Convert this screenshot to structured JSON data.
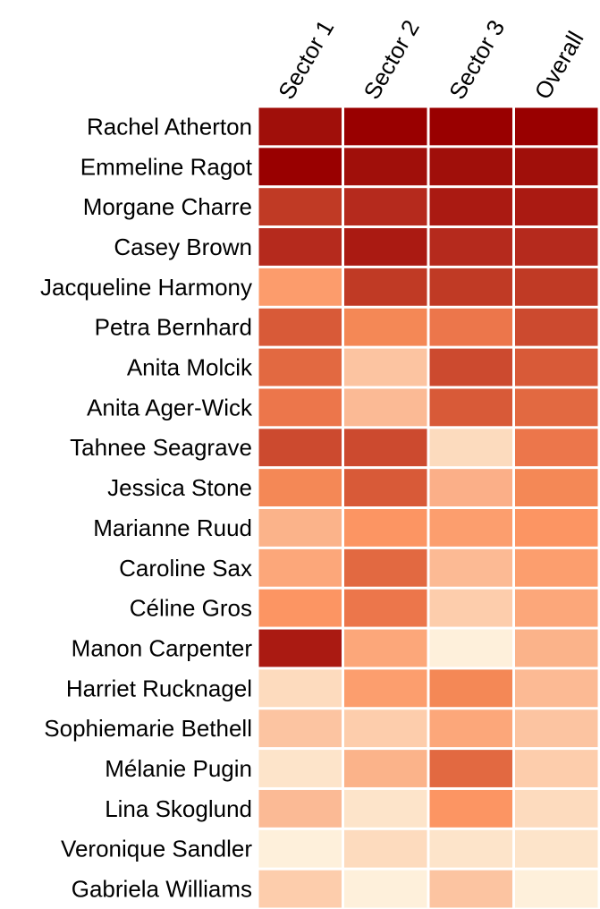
{
  "chart_data": {
    "type": "heatmap",
    "title": "",
    "columns": [
      "Sector 1",
      "Sector 2",
      "Sector 3",
      "Overall"
    ],
    "rows": [
      "Rachel Atherton",
      "Emmeline Ragot",
      "Morgane Charre",
      "Casey Brown",
      "Jacqueline Harmony",
      "Petra Bernhard",
      "Anita Molcik",
      "Anita Ager-Wick",
      "Tahnee Seagrave",
      "Jessica Stone",
      "Marianne Ruud",
      "Caroline Sax",
      "Céline Gros",
      "Manon Carpenter",
      "Harriet Rucknagel",
      "Sophiemarie Bethell",
      "Mélanie Pugin",
      "Lina Skoglund",
      "Veronique Sandler",
      "Gabriela Williams"
    ],
    "colorscale": "orange-red sequential (dark red = best, pale cream = worst)",
    "cell_colors": [
      [
        "#a00f0a",
        "#990000",
        "#990000",
        "#990000"
      ],
      [
        "#990000",
        "#a00f0a",
        "#a00f0a",
        "#a00f0a"
      ],
      [
        "#c03a25",
        "#b52a1d",
        "#aa1a12",
        "#aa1a12"
      ],
      [
        "#b52a1d",
        "#aa1a12",
        "#b52a1d",
        "#b52a1d"
      ],
      [
        "#fc9c6c",
        "#c03a25",
        "#c03a25",
        "#c03a25"
      ],
      [
        "#d85a38",
        "#f48856",
        "#ec764b",
        "#cc4a2f"
      ],
      [
        "#e26941",
        "#fcc4a1",
        "#cc4a2f",
        "#d85a38"
      ],
      [
        "#ec764b",
        "#fbba95",
        "#d85a38",
        "#e26941"
      ],
      [
        "#cc4a2f",
        "#cc4a2f",
        "#fcdbbe",
        "#ec764b"
      ],
      [
        "#f48856",
        "#d85a38",
        "#fbaf88",
        "#f48856"
      ],
      [
        "#fbb38a",
        "#fc9563",
        "#fc9e6e",
        "#fc9563"
      ],
      [
        "#fca77a",
        "#e26941",
        "#fcba94",
        "#fc9e6e"
      ],
      [
        "#fc9563",
        "#ec764b",
        "#fdcdac",
        "#fca77a"
      ],
      [
        "#aa1a12",
        "#fca77a",
        "#fef0db",
        "#fbb38a"
      ],
      [
        "#fddbbe",
        "#fc9e6e",
        "#f48856",
        "#fcba94"
      ],
      [
        "#fcc4a1",
        "#fdcdac",
        "#fca77a",
        "#fcc4a1"
      ],
      [
        "#fde4ca",
        "#fbb38a",
        "#e26941",
        "#fdcdac"
      ],
      [
        "#fbba95",
        "#fde4ca",
        "#fc9563",
        "#fddbbe"
      ],
      [
        "#fef0db",
        "#fddbbe",
        "#fde4ca",
        "#fde4ca"
      ],
      [
        "#fdcdac",
        "#fef0db",
        "#fcc4a1",
        "#fef0db"
      ]
    ],
    "grid": false,
    "legend": "none"
  }
}
